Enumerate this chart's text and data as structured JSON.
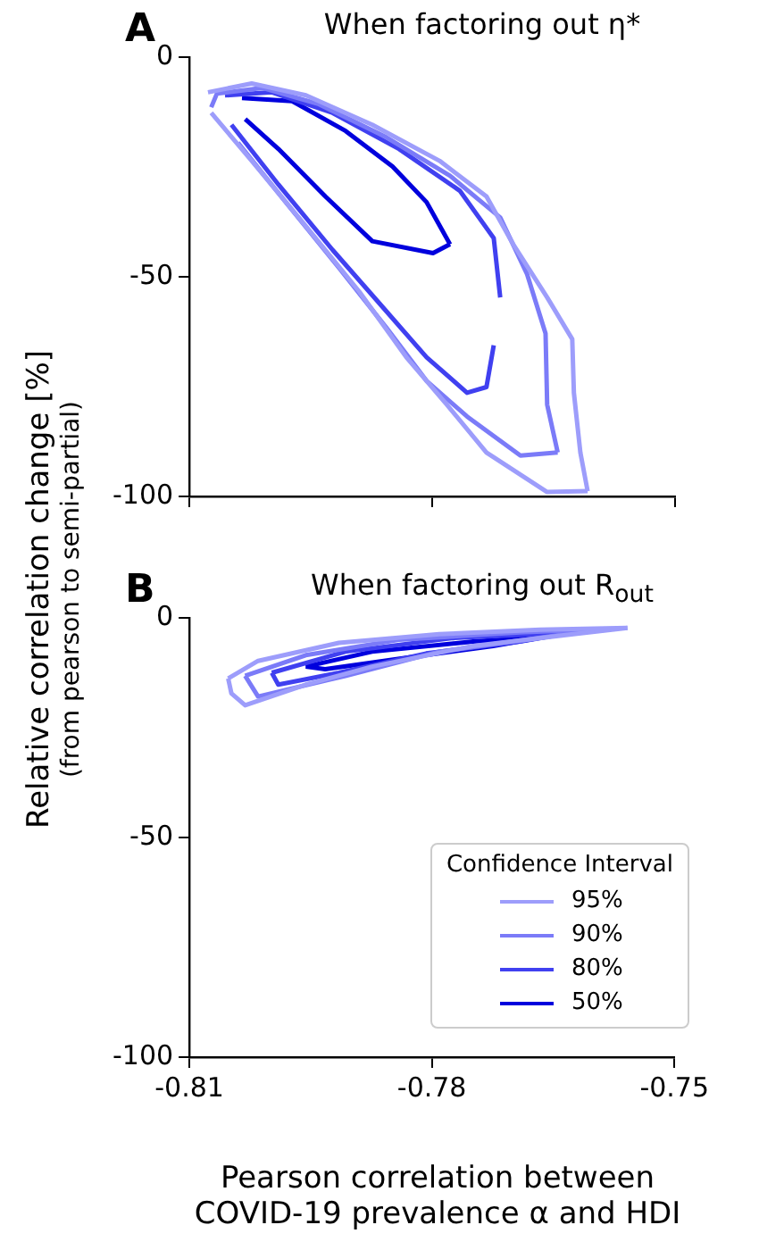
{
  "chart_data": [
    {
      "type": "line",
      "title": "When factoring out η*",
      "ylabel": "Relative correlation change [%]\n(from pearson to semi-partial)",
      "annotations": [
        "A"
      ],
      "xlim": [
        -0.81,
        -0.75
      ],
      "xticks": [
        -0.81,
        -0.78,
        -0.75
      ],
      "ylim": [
        -100,
        0
      ],
      "yticks": [
        -100,
        -50,
        0
      ],
      "tick_labels": "y",
      "grid": false,
      "legend": false,
      "marker": "none",
      "line_style": "solid",
      "series": [
        {
          "color": "#9d9dfb",
          "x": [
            -0.8077,
            -0.8023,
            -0.7956,
            -0.7874,
            -0.7791,
            -0.7733,
            -0.77,
            -0.7658,
            -0.7627,
            -0.7625,
            -0.7617,
            -0.7608
          ],
          "values": [
            -8,
            -6,
            -8.7,
            -15.4,
            -23.6,
            -31.7,
            -42.6,
            -54.7,
            -64.2,
            -76.4,
            -90,
            -98.8
          ]
        },
        {
          "color": "#9d9dfb",
          "x": [
            -0.8073,
            -0.8023,
            -0.7956,
            -0.789,
            -0.7832,
            -0.7782,
            -0.7733,
            -0.7658,
            -0.7608
          ],
          "values": [
            -12.7,
            -23.6,
            -38.5,
            -53.4,
            -68.3,
            -79.1,
            -90,
            -99,
            -98.8
          ]
        },
        {
          "color": "#7b7bf8",
          "x": [
            -0.8073,
            -0.8066,
            -0.801,
            -0.794,
            -0.7857,
            -0.7778,
            -0.7716,
            -0.7683,
            -0.766,
            -0.7658,
            -0.7645
          ],
          "values": [
            -11.4,
            -8.3,
            -7,
            -10.7,
            -18.2,
            -27,
            -36.5,
            -49.3,
            -62.9,
            -79.1,
            -90
          ]
        },
        {
          "color": "#7b7bf8",
          "x": [
            -0.804,
            -0.7981,
            -0.7915,
            -0.7857,
            -0.7807,
            -0.7757,
            -0.7691,
            -0.7645
          ],
          "values": [
            -19.5,
            -33,
            -48,
            -61.5,
            -73.7,
            -81.8,
            -90.7,
            -90
          ]
        },
        {
          "color": "#4040f0",
          "x": [
            -0.8056,
            -0.7998,
            -0.7923,
            -0.7841,
            -0.7766,
            -0.7724,
            -0.7716
          ],
          "values": [
            -8.7,
            -8,
            -12.7,
            -20.9,
            -30.4,
            -41.2,
            -54.7
          ]
        },
        {
          "color": "#4040f0",
          "x": [
            -0.8048,
            -0.799,
            -0.7923,
            -0.7865,
            -0.7807,
            -0.7757,
            -0.7733,
            -0.7724
          ],
          "values": [
            -15.4,
            -29,
            -43.9,
            -56.1,
            -68.3,
            -76.4,
            -75.1,
            -65.6
          ]
        },
        {
          "color": "#0000dd",
          "x": [
            -0.8035,
            -0.7973,
            -0.7907,
            -0.7849,
            -0.7807,
            -0.7778
          ],
          "values": [
            -9.3,
            -10,
            -16.8,
            -24.9,
            -33,
            -42.6
          ]
        },
        {
          "color": "#0000dd",
          "x": [
            -0.8031,
            -0.799,
            -0.7932,
            -0.7874,
            -0.7799,
            -0.7778
          ],
          "values": [
            -14.1,
            -20.9,
            -31.7,
            -41.9,
            -44.6,
            -42.6
          ]
        }
      ]
    },
    {
      "type": "line",
      "title": "When factoring out R$_{out}$",
      "xlabel": "Pearson correlation between\nCOVID-19 prevalence α and HDI",
      "annotations": [
        "B"
      ],
      "legend_title": "Confidence Interval",
      "xlim": [
        -0.81,
        -0.75
      ],
      "xticks": [
        -0.81,
        -0.78,
        -0.75
      ],
      "ylim": [
        -100,
        0
      ],
      "yticks": [
        -100,
        -50,
        0
      ],
      "grid": false,
      "legend": "bottom right",
      "marker": "none",
      "line_style": "solid",
      "series": [
        {
          "name": "95%",
          "color": "#9d9dfb",
          "x": [
            -0.8052,
            -0.8015,
            -0.7915,
            -0.7791,
            -0.7666,
            -0.7558
          ],
          "values": [
            -13.8,
            -9.8,
            -5.7,
            -3.7,
            -2.7,
            -2.3
          ]
        },
        {
          "color": "#9d9dfb",
          "x": [
            -0.8052,
            -0.8048,
            -0.8031,
            -0.7956,
            -0.7874,
            -0.7749,
            -0.7625,
            -0.7558
          ],
          "values": [
            -13.8,
            -17.2,
            -19.9,
            -15.2,
            -11.1,
            -6.4,
            -3.7,
            -2.3
          ]
        },
        {
          "name": "90%",
          "color": "#7b7bf8",
          "x": [
            -0.8031,
            -0.7956,
            -0.7841,
            -0.7691,
            -0.7592
          ],
          "values": [
            -13.2,
            -8.5,
            -5,
            -3.3,
            -2.6
          ]
        },
        {
          "color": "#7b7bf8",
          "x": [
            -0.8031,
            -0.8015,
            -0.7907,
            -0.7791,
            -0.7658,
            -0.7592
          ],
          "values": [
            -13.2,
            -17.9,
            -13.2,
            -7.7,
            -4.3,
            -2.6
          ]
        },
        {
          "name": "80%",
          "color": "#4040f0",
          "x": [
            -0.7998,
            -0.7907,
            -0.7774,
            -0.7625
          ],
          "values": [
            -12.5,
            -7.7,
            -4.6,
            -3.3
          ]
        },
        {
          "color": "#4040f0",
          "x": [
            -0.7998,
            -0.799,
            -0.7915,
            -0.7807,
            -0.7691,
            -0.7625
          ],
          "values": [
            -12.5,
            -15.2,
            -12.5,
            -8.1,
            -5.4,
            -3.3
          ]
        },
        {
          "name": "50%",
          "color": "#0000dd",
          "x": [
            -0.7956,
            -0.7874,
            -0.7749,
            -0.7658
          ],
          "values": [
            -11.1,
            -7.7,
            -5.4,
            -4.3
          ]
        },
        {
          "color": "#0000dd",
          "x": [
            -0.7956,
            -0.7932,
            -0.7832,
            -0.7724,
            -0.7658
          ],
          "values": [
            -11.1,
            -11.7,
            -9.1,
            -6.4,
            -4.3
          ]
        }
      ]
    }
  ]
}
